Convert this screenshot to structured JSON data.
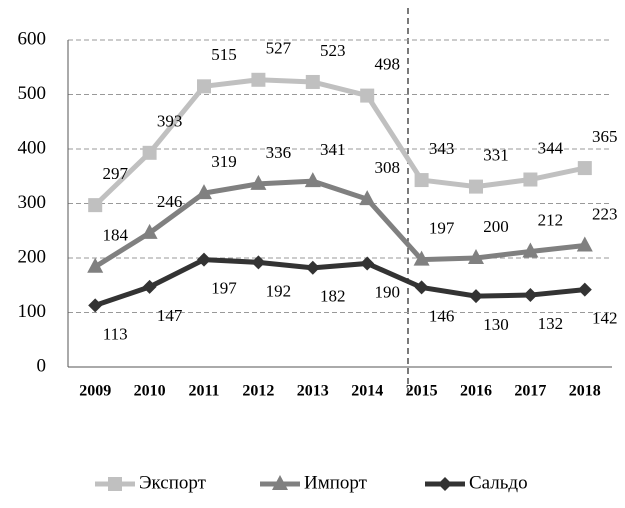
{
  "chart_data": {
    "type": "line",
    "categories": [
      "2009",
      "2010",
      "2011",
      "2012",
      "2013",
      "2014",
      "2015",
      "2016",
      "2017",
      "2018"
    ],
    "series": [
      {
        "name": "Экспорт",
        "color": "#c0c0c0",
        "marker": "square",
        "values": [
          297,
          393,
          515,
          527,
          523,
          498,
          343,
          331,
          344,
          365
        ]
      },
      {
        "name": "Импорт",
        "color": "#808080",
        "marker": "triangle",
        "values": [
          184,
          246,
          319,
          336,
          341,
          308,
          197,
          200,
          212,
          223
        ]
      },
      {
        "name": "Сальдо",
        "color": "#333333",
        "marker": "diamond",
        "values": [
          113,
          147,
          197,
          192,
          182,
          190,
          146,
          130,
          132,
          142
        ]
      }
    ],
    "ylim": [
      0,
      600
    ],
    "yticks": [
      0,
      100,
      200,
      300,
      400,
      500,
      600
    ],
    "grid": true,
    "legend": "bottom"
  }
}
